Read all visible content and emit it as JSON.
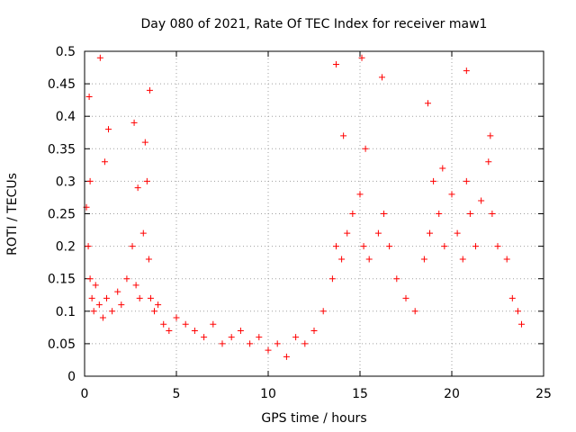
{
  "chart_data": {
    "type": "scatter",
    "title": "Day 080 of 2021, Rate Of TEC Index for receiver maw1",
    "xlabel": "GPS time / hours",
    "ylabel": "ROTI / TECUs",
    "xlim": [
      0,
      25
    ],
    "ylim": [
      0,
      0.5
    ],
    "xticks": [
      "0",
      "5",
      "10",
      "15",
      "20",
      "25"
    ],
    "yticks": [
      "0",
      "0.05",
      "0.1",
      "0.15",
      "0.2",
      "0.25",
      "0.3",
      "0.35",
      "0.4",
      "0.45",
      "0.5"
    ],
    "grid": true,
    "marker": "plus",
    "color": "#ff0000",
    "series": [
      {
        "x": [
          0.1,
          0.2,
          0.3,
          0.4,
          0.5,
          0.6,
          0.8,
          1.0,
          1.2,
          1.5,
          1.8,
          2.0,
          2.3,
          2.6,
          2.8,
          3.0,
          3.2,
          3.4,
          3.5,
          3.6,
          3.8,
          4.0,
          4.3,
          4.6,
          5.0,
          5.5,
          6.0,
          6.5,
          7.0,
          7.5,
          8.0,
          8.5,
          9.0,
          9.5,
          10.0,
          10.5,
          11.0,
          11.5,
          12.0,
          12.5,
          13.0,
          13.5,
          13.7,
          14.0,
          14.3,
          14.6,
          15.0,
          15.2,
          15.5,
          16.0,
          16.3,
          16.6,
          17.0,
          17.5,
          18.0,
          18.5,
          18.8,
          19.0,
          19.3,
          19.6,
          20.0,
          20.3,
          20.6,
          20.8,
          21.0,
          21.3,
          21.6,
          22.0,
          22.2,
          22.5,
          23.0,
          23.3,
          23.6,
          23.8,
          0.25,
          0.85,
          1.3,
          2.7,
          3.55,
          13.7,
          15.1,
          16.2,
          18.7,
          20.8,
          0.3,
          1.1,
          2.9,
          3.3,
          14.1,
          15.3,
          19.5,
          22.1
        ],
        "y": [
          0.26,
          0.2,
          0.15,
          0.12,
          0.1,
          0.14,
          0.11,
          0.09,
          0.12,
          0.1,
          0.13,
          0.11,
          0.15,
          0.2,
          0.14,
          0.12,
          0.22,
          0.3,
          0.18,
          0.12,
          0.1,
          0.11,
          0.08,
          0.07,
          0.09,
          0.08,
          0.07,
          0.06,
          0.08,
          0.05,
          0.06,
          0.07,
          0.05,
          0.06,
          0.04,
          0.05,
          0.03,
          0.06,
          0.05,
          0.07,
          0.1,
          0.15,
          0.2,
          0.18,
          0.22,
          0.25,
          0.28,
          0.2,
          0.18,
          0.22,
          0.25,
          0.2,
          0.15,
          0.12,
          0.1,
          0.18,
          0.22,
          0.3,
          0.25,
          0.2,
          0.28,
          0.22,
          0.18,
          0.3,
          0.25,
          0.2,
          0.27,
          0.33,
          0.25,
          0.2,
          0.18,
          0.12,
          0.1,
          0.08,
          0.43,
          0.49,
          0.38,
          0.39,
          0.44,
          0.48,
          0.49,
          0.46,
          0.42,
          0.47,
          0.3,
          0.33,
          0.29,
          0.36,
          0.37,
          0.35,
          0.32,
          0.37
        ]
      }
    ]
  }
}
